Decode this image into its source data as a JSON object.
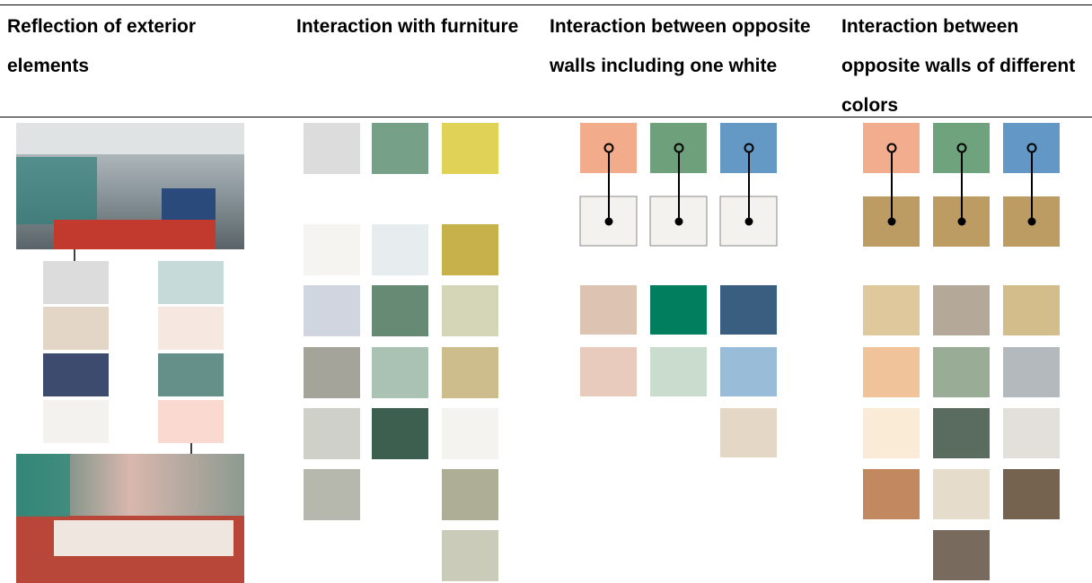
{
  "table": {
    "headers": [
      "Reflection of exterior elements",
      "Interaction with furniture",
      "Interaction between opposite walls including one white",
      "Interaction between opposite walls of different colors"
    ]
  }
}
